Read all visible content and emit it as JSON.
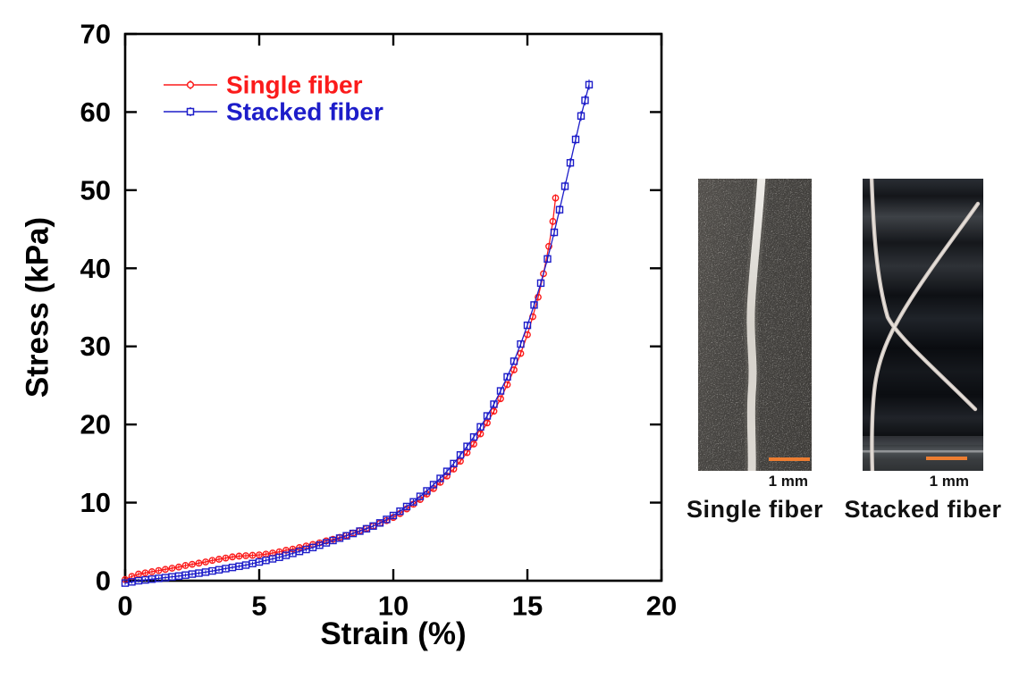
{
  "chart_data": {
    "type": "line",
    "title": "",
    "xlabel": "Strain (%)",
    "ylabel": "Stress (kPa)",
    "xlim": [
      0,
      20
    ],
    "ylim": [
      0,
      70
    ],
    "xticks": [
      0,
      5,
      10,
      15,
      20
    ],
    "yticks": [
      0,
      10,
      20,
      30,
      40,
      50,
      60,
      70
    ],
    "grid": false,
    "legend_position": "upper-left-inside",
    "frame": "box-with-inward-ticks",
    "series": [
      {
        "name": "Single fiber",
        "color": "#fb1b1b",
        "marker": "circle",
        "points": [
          [
            0,
            0.15
          ],
          [
            0.25,
            0.55
          ],
          [
            0.5,
            0.85
          ],
          [
            0.75,
            1.0
          ],
          [
            1,
            1.15
          ],
          [
            1.25,
            1.3
          ],
          [
            1.5,
            1.45
          ],
          [
            1.75,
            1.6
          ],
          [
            2,
            1.75
          ],
          [
            2.25,
            1.95
          ],
          [
            2.5,
            2.1
          ],
          [
            2.75,
            2.25
          ],
          [
            3,
            2.4
          ],
          [
            3.25,
            2.6
          ],
          [
            3.5,
            2.75
          ],
          [
            3.75,
            2.9
          ],
          [
            4,
            3.05
          ],
          [
            4.25,
            3.15
          ],
          [
            4.5,
            3.2
          ],
          [
            4.75,
            3.25
          ],
          [
            5,
            3.3
          ],
          [
            5.25,
            3.4
          ],
          [
            5.5,
            3.55
          ],
          [
            5.75,
            3.7
          ],
          [
            6,
            3.9
          ],
          [
            6.25,
            4.05
          ],
          [
            6.5,
            4.25
          ],
          [
            6.75,
            4.45
          ],
          [
            7,
            4.65
          ],
          [
            7.25,
            4.85
          ],
          [
            7.5,
            5.1
          ],
          [
            7.75,
            5.3
          ],
          [
            8,
            5.55
          ],
          [
            8.25,
            5.8
          ],
          [
            8.5,
            6.1
          ],
          [
            8.75,
            6.4
          ],
          [
            9,
            6.7
          ],
          [
            9.25,
            7.0
          ],
          [
            9.5,
            7.35
          ],
          [
            9.75,
            7.7
          ],
          [
            10,
            8.1
          ],
          [
            10.25,
            8.6
          ],
          [
            10.5,
            9.2
          ],
          [
            10.75,
            9.8
          ],
          [
            11,
            10.4
          ],
          [
            11.25,
            11.1
          ],
          [
            11.5,
            11.8
          ],
          [
            11.75,
            12.6
          ],
          [
            12,
            13.4
          ],
          [
            12.25,
            14.3
          ],
          [
            12.5,
            15.3
          ],
          [
            12.75,
            16.4
          ],
          [
            13,
            17.5
          ],
          [
            13.25,
            18.8
          ],
          [
            13.5,
            20.2
          ],
          [
            13.75,
            21.7
          ],
          [
            14,
            23.3
          ],
          [
            14.25,
            25.1
          ],
          [
            14.5,
            27.0
          ],
          [
            14.75,
            29.1
          ],
          [
            15,
            31.5
          ],
          [
            15.2,
            33.8
          ],
          [
            15.4,
            36.3
          ],
          [
            15.6,
            39.3
          ],
          [
            15.8,
            42.8
          ],
          [
            15.95,
            46.0
          ],
          [
            16.05,
            49.0
          ]
        ]
      },
      {
        "name": "Stacked fiber",
        "color": "#1d1dc9",
        "marker": "square",
        "points": [
          [
            0,
            -0.3
          ],
          [
            0.25,
            -0.15
          ],
          [
            0.5,
            0.0
          ],
          [
            0.75,
            0.1
          ],
          [
            1,
            0.2
          ],
          [
            1.25,
            0.3
          ],
          [
            1.5,
            0.4
          ],
          [
            1.75,
            0.5
          ],
          [
            2,
            0.6
          ],
          [
            2.25,
            0.72
          ],
          [
            2.5,
            0.85
          ],
          [
            2.75,
            0.97
          ],
          [
            3,
            1.1
          ],
          [
            3.25,
            1.25
          ],
          [
            3.5,
            1.4
          ],
          [
            3.75,
            1.55
          ],
          [
            4,
            1.7
          ],
          [
            4.25,
            1.85
          ],
          [
            4.5,
            2.0
          ],
          [
            4.75,
            2.2
          ],
          [
            5,
            2.4
          ],
          [
            5.25,
            2.6
          ],
          [
            5.5,
            2.8
          ],
          [
            5.75,
            3.0
          ],
          [
            6,
            3.25
          ],
          [
            6.25,
            3.5
          ],
          [
            6.5,
            3.75
          ],
          [
            6.75,
            4.0
          ],
          [
            7,
            4.25
          ],
          [
            7.25,
            4.55
          ],
          [
            7.5,
            4.85
          ],
          [
            7.75,
            5.15
          ],
          [
            8,
            5.45
          ],
          [
            8.25,
            5.75
          ],
          [
            8.5,
            6.05
          ],
          [
            8.75,
            6.35
          ],
          [
            9,
            6.65
          ],
          [
            9.25,
            7.0
          ],
          [
            9.5,
            7.4
          ],
          [
            9.75,
            7.85
          ],
          [
            10,
            8.35
          ],
          [
            10.25,
            8.9
          ],
          [
            10.5,
            9.5
          ],
          [
            10.75,
            10.1
          ],
          [
            11,
            10.8
          ],
          [
            11.25,
            11.5
          ],
          [
            11.5,
            12.3
          ],
          [
            11.75,
            13.1
          ],
          [
            12,
            14.0
          ],
          [
            12.25,
            15.0
          ],
          [
            12.5,
            16.1
          ],
          [
            12.75,
            17.2
          ],
          [
            13,
            18.4
          ],
          [
            13.25,
            19.7
          ],
          [
            13.5,
            21.1
          ],
          [
            13.75,
            22.6
          ],
          [
            14,
            24.3
          ],
          [
            14.25,
            26.1
          ],
          [
            14.5,
            28.1
          ],
          [
            14.75,
            30.3
          ],
          [
            15,
            32.7
          ],
          [
            15.25,
            35.3
          ],
          [
            15.5,
            38.1
          ],
          [
            15.75,
            41.2
          ],
          [
            16,
            44.6
          ],
          [
            16.2,
            47.5
          ],
          [
            16.4,
            50.5
          ],
          [
            16.6,
            53.5
          ],
          [
            16.8,
            56.5
          ],
          [
            17,
            59.5
          ],
          [
            17.15,
            61.5
          ],
          [
            17.3,
            63.5
          ]
        ]
      }
    ]
  },
  "photos": {
    "scalebar_color": "#ED7D31",
    "single": {
      "caption": "Single fiber",
      "scale_label": "1 mm"
    },
    "stacked": {
      "caption": "Stacked fiber",
      "scale_label": "1 mm"
    }
  }
}
